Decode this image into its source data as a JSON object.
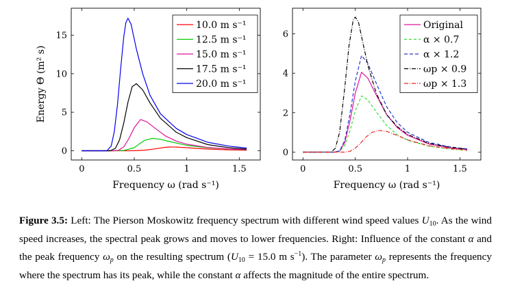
{
  "chart_data": [
    {
      "type": "line",
      "xlabel": "Frequency ω (rad s⁻¹)",
      "ylabel": "Energy Θ (m² s)",
      "xlim": [
        -0.1,
        1.7
      ],
      "ylim": [
        -1.2,
        18.5
      ],
      "xticks": [
        "0",
        "0.5",
        "1",
        "1.5"
      ],
      "xtick_values": [
        0,
        0.5,
        1,
        1.5
      ],
      "yticks": [
        "0",
        "5",
        "10",
        "15"
      ],
      "ytick_values": [
        0,
        5,
        10,
        15
      ],
      "legend_position": "top-right",
      "grid": false,
      "series": [
        {
          "name": "10.0 m s⁻¹",
          "color": "#ff0000",
          "dash": "solid",
          "x": [
            0,
            0.4,
            0.5,
            0.6,
            0.7,
            0.8,
            0.84,
            0.9,
            1.0,
            1.1,
            1.2,
            1.3,
            1.4,
            1.57
          ],
          "y": [
            0,
            0,
            0.01,
            0.08,
            0.25,
            0.45,
            0.49,
            0.48,
            0.4,
            0.3,
            0.22,
            0.16,
            0.11,
            0.06
          ]
        },
        {
          "name": "12.5 m s⁻¹",
          "color": "#00cc00",
          "dash": "solid",
          "x": [
            0,
            0.3,
            0.4,
            0.5,
            0.55,
            0.6,
            0.67,
            0.75,
            0.85,
            1.0,
            1.2,
            1.4,
            1.57
          ],
          "y": [
            0,
            0,
            0.03,
            0.4,
            0.9,
            1.35,
            1.6,
            1.48,
            1.15,
            0.7,
            0.38,
            0.2,
            0.12
          ]
        },
        {
          "name": "15.0 m s⁻¹",
          "color": "#e0129b",
          "dash": "solid",
          "x": [
            0,
            0.3,
            0.35,
            0.4,
            0.45,
            0.5,
            0.56,
            0.62,
            0.7,
            0.8,
            0.9,
            1.0,
            1.2,
            1.4,
            1.57
          ],
          "y": [
            0,
            0.0,
            0.05,
            0.5,
            1.6,
            3.0,
            4.05,
            3.75,
            2.9,
            1.9,
            1.25,
            0.85,
            0.42,
            0.22,
            0.13
          ]
        },
        {
          "name": "17.5 m s⁻¹",
          "color": "#000000",
          "dash": "solid",
          "x": [
            0,
            0.27,
            0.32,
            0.36,
            0.4,
            0.44,
            0.48,
            0.52,
            0.58,
            0.65,
            0.75,
            0.9,
            1.0,
            1.2,
            1.4,
            1.57
          ],
          "y": [
            0,
            0,
            0.3,
            1.4,
            3.6,
            6.3,
            8.3,
            8.7,
            7.9,
            6.2,
            4.2,
            2.4,
            1.7,
            0.8,
            0.4,
            0.22
          ]
        },
        {
          "name": "20.0 m s⁻¹",
          "color": "#0000ee",
          "dash": "solid",
          "x": [
            0,
            0.24,
            0.28,
            0.31,
            0.34,
            0.37,
            0.4,
            0.42,
            0.44,
            0.47,
            0.52,
            0.58,
            0.65,
            0.75,
            0.9,
            1.0,
            1.2,
            1.4,
            1.57
          ],
          "y": [
            0,
            0,
            0.6,
            2.5,
            6.0,
            10.6,
            14.8,
            16.6,
            17.2,
            16.4,
            13.2,
            10.0,
            7.2,
            4.8,
            2.9,
            2.1,
            1.1,
            0.6,
            0.35
          ]
        }
      ]
    },
    {
      "type": "line",
      "xlabel": "Frequency ω (rad s⁻¹)",
      "ylabel": "",
      "xlim": [
        -0.1,
        1.7
      ],
      "ylim": [
        -0.4,
        7.3
      ],
      "xticks": [
        "0",
        "0.5",
        "1",
        "1.5"
      ],
      "xtick_values": [
        0,
        0.5,
        1,
        1.5
      ],
      "yticks": [
        "0",
        "2",
        "4",
        "6"
      ],
      "ytick_values": [
        0,
        2,
        4,
        6
      ],
      "legend_position": "top-right",
      "grid": false,
      "series": [
        {
          "name": "Original",
          "color": "#e0129b",
          "dash": "solid",
          "x": [
            0,
            0.3,
            0.35,
            0.4,
            0.45,
            0.5,
            0.56,
            0.62,
            0.7,
            0.8,
            0.9,
            1.0,
            1.2,
            1.4,
            1.57
          ],
          "y": [
            0,
            0.0,
            0.05,
            0.5,
            1.6,
            3.0,
            4.05,
            3.75,
            2.9,
            1.9,
            1.25,
            0.85,
            0.42,
            0.22,
            0.13
          ]
        },
        {
          "name": "α × 0.7",
          "color": "#33dd33",
          "dash": "4,3",
          "x": [
            0,
            0.3,
            0.35,
            0.4,
            0.45,
            0.5,
            0.56,
            0.62,
            0.7,
            0.8,
            0.9,
            1.0,
            1.2,
            1.4,
            1.57
          ],
          "y": [
            0,
            0.0,
            0.04,
            0.35,
            1.1,
            2.1,
            2.85,
            2.65,
            2.05,
            1.35,
            0.88,
            0.6,
            0.3,
            0.16,
            0.09
          ]
        },
        {
          "name": "α × 1.2",
          "color": "#2233cc",
          "dash": "5,3",
          "x": [
            0,
            0.3,
            0.35,
            0.4,
            0.45,
            0.5,
            0.56,
            0.62,
            0.7,
            0.8,
            0.9,
            1.0,
            1.2,
            1.4,
            1.57
          ],
          "y": [
            0,
            0.0,
            0.06,
            0.6,
            1.95,
            3.6,
            4.9,
            4.5,
            3.5,
            2.3,
            1.5,
            1.0,
            0.5,
            0.27,
            0.16
          ]
        },
        {
          "name": "ωp × 0.9",
          "color": "#000000",
          "dash": "6,2,1,2",
          "x": [
            0,
            0.27,
            0.31,
            0.35,
            0.4,
            0.44,
            0.48,
            0.5,
            0.53,
            0.57,
            0.62,
            0.7,
            0.8,
            0.9,
            1.0,
            1.2,
            1.4,
            1.57
          ],
          "y": [
            0,
            0,
            0.2,
            1.0,
            3.3,
            5.4,
            6.7,
            6.85,
            6.6,
            5.6,
            4.4,
            3.0,
            1.9,
            1.3,
            0.9,
            0.45,
            0.25,
            0.15
          ]
        },
        {
          "name": "ωp × 1.3",
          "color": "#ee2222",
          "dash": "6,2,1,2",
          "x": [
            0,
            0.4,
            0.45,
            0.5,
            0.55,
            0.6,
            0.66,
            0.73,
            0.8,
            0.9,
            1.0,
            1.2,
            1.4,
            1.57
          ],
          "y": [
            0,
            0,
            0.04,
            0.2,
            0.45,
            0.75,
            1.0,
            1.1,
            1.05,
            0.85,
            0.62,
            0.33,
            0.18,
            0.1
          ]
        }
      ]
    }
  ],
  "caption": {
    "label": "Figure 3.5:",
    "p1": " Left: The Pierson Moskowitz frequency spectrum with different wind speed values ",
    "u": "U",
    "u_sub": "10",
    "p2": ". As the wind speed increases, the spectral peak grows and moves to lower frequencies. Right: Influence of the constant ",
    "alpha": "α",
    "p3": " and the peak frequency ",
    "omega": "ω",
    "omega_sub": "p",
    "p4": " on the resulting spectrum (",
    "u2": "U",
    "u2_sub": "10",
    "p5": " = 15.0 m s",
    "p5_sup": "−1",
    "p6": "). The parameter ",
    "omega2": "ω",
    "omega2_sub": "p",
    "p7": " represents the frequency where the spectrum has its peak, while the constant ",
    "alpha2": "α",
    "p8": " affects the magnitude of the entire spectrum."
  }
}
